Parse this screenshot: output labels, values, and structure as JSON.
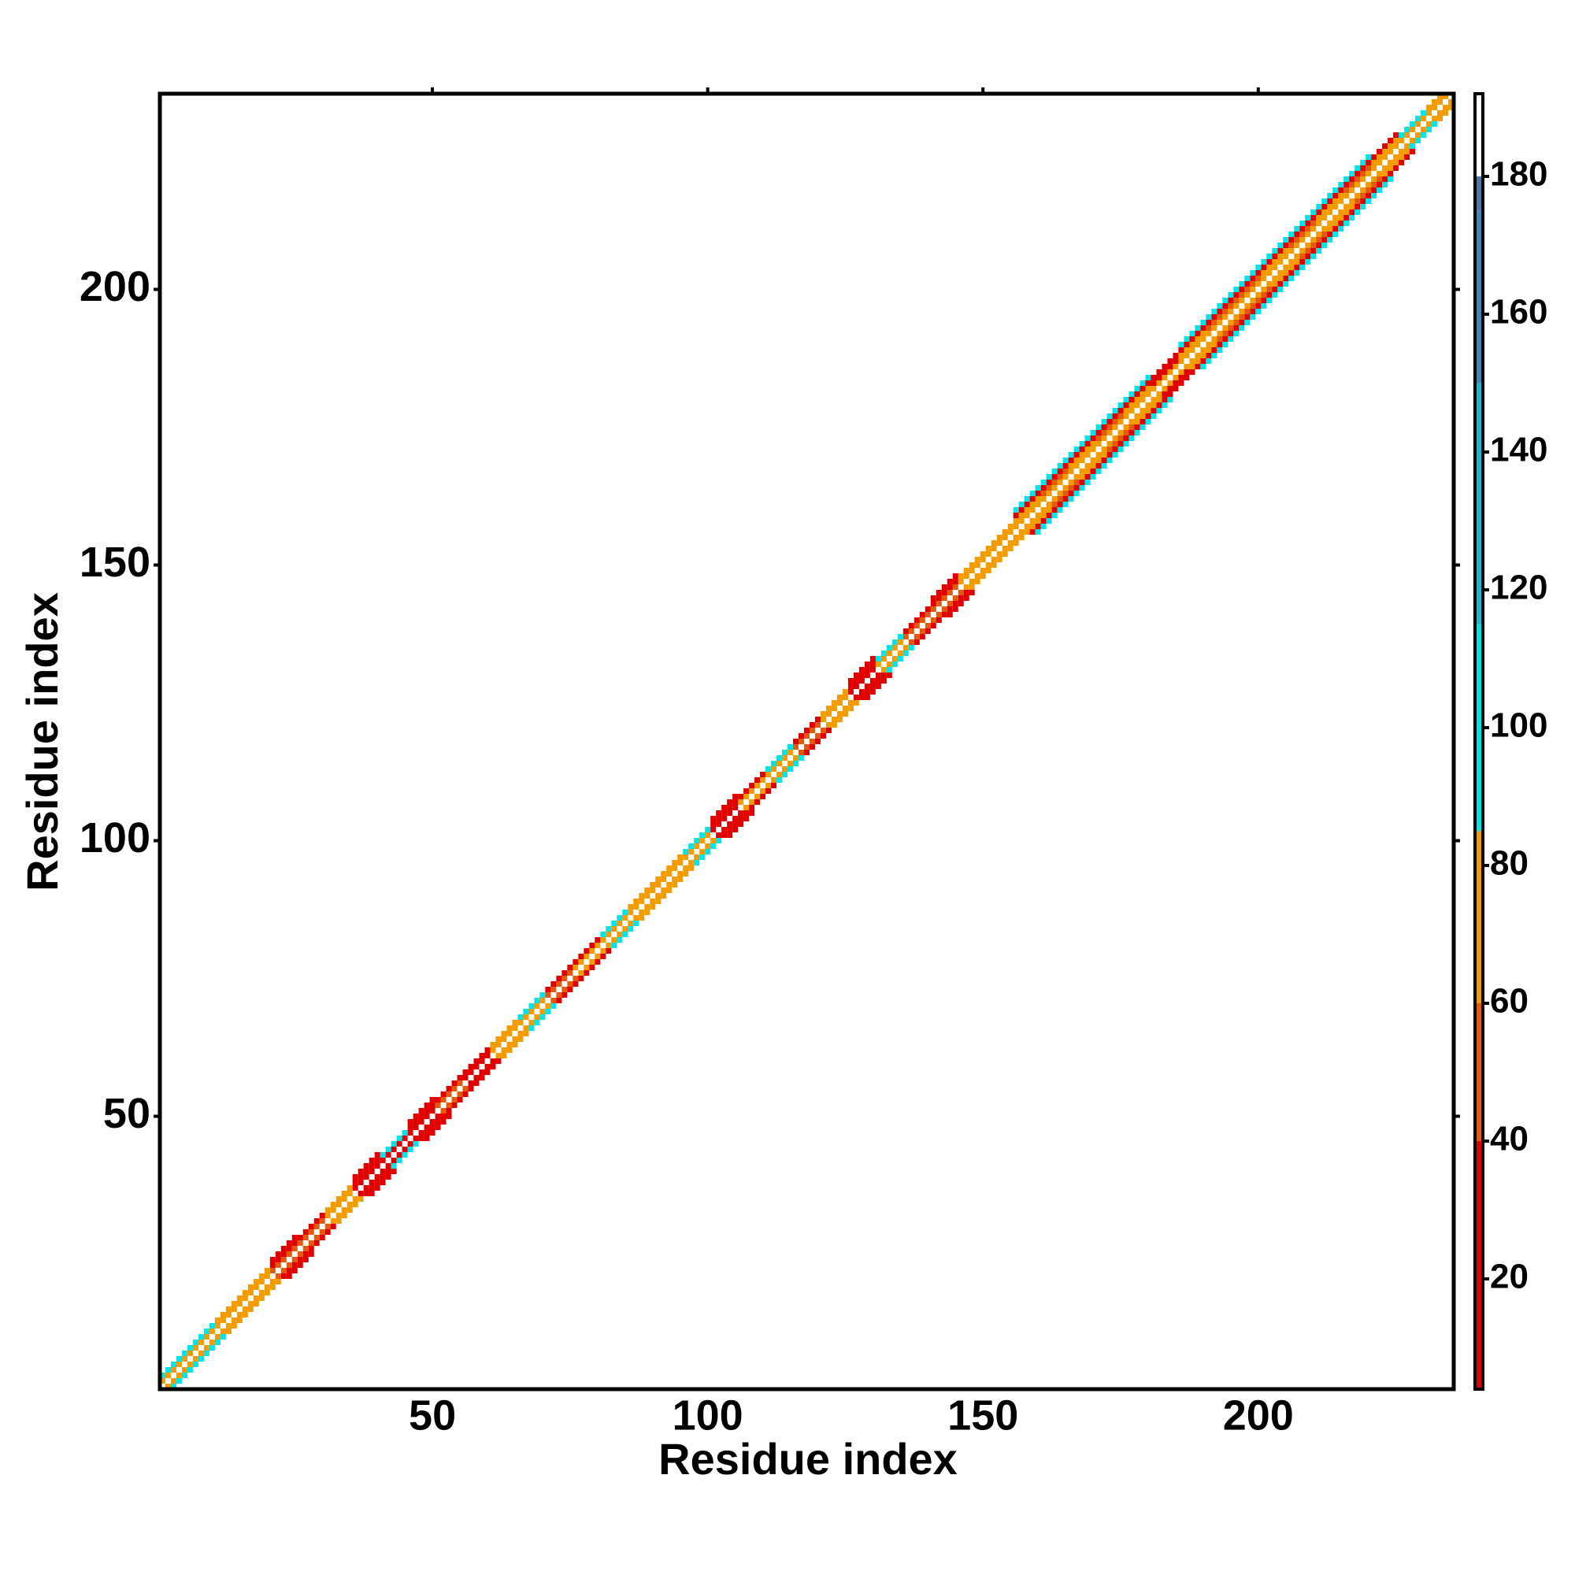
{
  "chart_data": {
    "type": "heatmap",
    "xlabel": "Residue index",
    "ylabel": "Residue index",
    "xlim": [
      0.5,
      235.5
    ],
    "ylim": [
      0.5,
      235.5
    ],
    "xticks": [
      50,
      100,
      150,
      200
    ],
    "yticks": [
      50,
      100,
      150,
      200
    ],
    "blocks": [
      [
        1,
        5
      ],
      [
        6,
        10
      ],
      [
        11,
        15
      ],
      [
        16,
        20
      ],
      [
        21,
        25
      ],
      [
        26,
        30
      ],
      [
        31,
        35
      ],
      [
        36,
        40
      ],
      [
        41,
        45
      ],
      [
        46,
        50
      ],
      [
        51,
        55
      ],
      [
        56,
        60
      ],
      [
        61,
        65
      ],
      [
        66,
        70
      ],
      [
        71,
        75
      ],
      [
        76,
        80
      ],
      [
        81,
        85
      ],
      [
        86,
        90
      ],
      [
        91,
        95
      ],
      [
        96,
        100
      ],
      [
        101,
        105
      ],
      [
        106,
        110
      ],
      [
        111,
        115
      ],
      [
        116,
        120
      ],
      [
        121,
        125
      ],
      [
        126,
        130
      ],
      [
        131,
        135
      ],
      [
        136,
        140
      ],
      [
        141,
        145
      ],
      [
        146,
        150
      ],
      [
        151,
        155
      ],
      [
        156,
        160
      ],
      [
        161,
        165
      ],
      [
        166,
        170
      ],
      [
        171,
        175
      ],
      [
        176,
        180
      ],
      [
        181,
        185
      ],
      [
        186,
        190
      ],
      [
        191,
        195
      ],
      [
        196,
        200
      ],
      [
        201,
        205
      ],
      [
        206,
        210
      ],
      [
        211,
        215
      ],
      [
        216,
        220
      ],
      [
        221,
        225
      ],
      [
        226,
        230
      ],
      [
        231,
        235
      ]
    ],
    "offsets": [
      1,
      2,
      3,
      4
    ],
    "values": [
      [
        70,
        75,
        75,
        72,
        45,
        40,
        75,
        30,
        25,
        35,
        40,
        35,
        75,
        75,
        45,
        70,
        75,
        75,
        75,
        80,
        30,
        75,
        75,
        40,
        70,
        30,
        75,
        45,
        40,
        72,
        78,
        75,
        75,
        75,
        75,
        75,
        75,
        75,
        75,
        75,
        75,
        75,
        75,
        75,
        75,
        75,
        75
      ],
      [
        100,
        100,
        75,
        75,
        20,
        15,
        75,
        20,
        105,
        20,
        20,
        25,
        75,
        100,
        20,
        30,
        100,
        75,
        75,
        100,
        15,
        20,
        100,
        20,
        75,
        20,
        100,
        20,
        15,
        70,
        75,
        60,
        50,
        60,
        55,
        60,
        20,
        60,
        50,
        55,
        60,
        55,
        60,
        50,
        60,
        100,
        75
      ],
      [
        null,
        null,
        null,
        null,
        15,
        null,
        null,
        15,
        null,
        15,
        null,
        null,
        null,
        null,
        null,
        null,
        null,
        null,
        null,
        null,
        15,
        null,
        null,
        null,
        null,
        15,
        null,
        null,
        12,
        null,
        null,
        20,
        25,
        30,
        20,
        25,
        30,
        20,
        25,
        20,
        30,
        25,
        20,
        30,
        20,
        null,
        null
      ],
      [
        null,
        null,
        null,
        null,
        null,
        null,
        null,
        null,
        null,
        null,
        null,
        null,
        null,
        null,
        null,
        null,
        null,
        null,
        null,
        null,
        null,
        null,
        null,
        null,
        null,
        null,
        null,
        null,
        null,
        null,
        null,
        95,
        100,
        100,
        100,
        100,
        null,
        100,
        100,
        100,
        100,
        100,
        100,
        100,
        null,
        null,
        null
      ]
    ],
    "colorbar": {
      "lim": [
        4,
        192
      ],
      "ticks": [
        20,
        40,
        60,
        80,
        100,
        120,
        140,
        160,
        180
      ],
      "colors": [
        {
          "value": 4,
          "color": "#e00000"
        },
        {
          "value": 40,
          "color": "#e25a0a"
        },
        {
          "value": 60,
          "color": "#f39c00"
        },
        {
          "value": 85,
          "color": "#00e4ea"
        },
        {
          "value": 115,
          "color": "#1fb5d2"
        },
        {
          "value": 150,
          "color": "#4386b8"
        },
        {
          "value": 175,
          "color": "#5575a8"
        },
        {
          "value": 180,
          "color": "#ffffff"
        }
      ]
    }
  }
}
